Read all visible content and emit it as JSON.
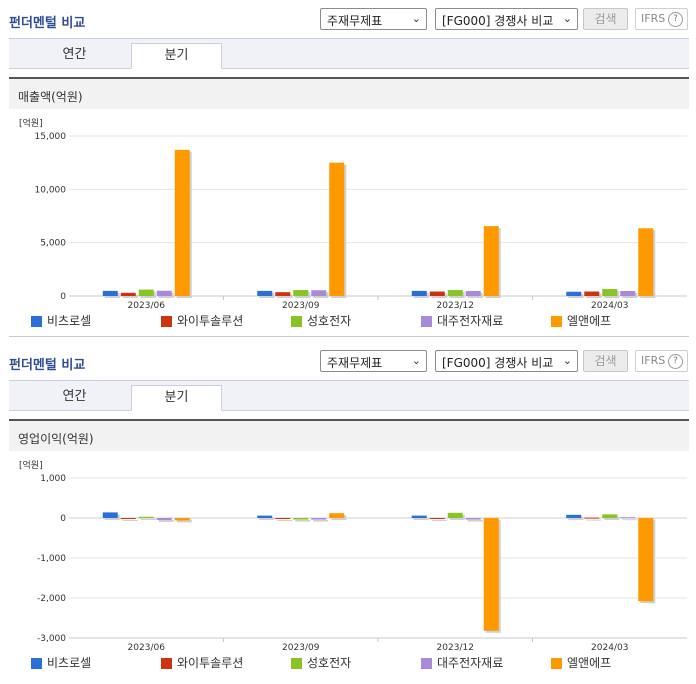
{
  "panels": [
    {
      "title": "펀더멘털 비교",
      "select_statement": "주재무제표",
      "select_compare": "[FG000] 경쟁사 비교",
      "search_label": "검색",
      "ifrs_label": "IFRS",
      "help_glyph": "?",
      "tabs": [
        {
          "label": "연간"
        },
        {
          "label": "분기"
        }
      ],
      "active_tab": "분기",
      "section_title": "매출액(억원)"
    },
    {
      "title": "펀더멘털 비교",
      "select_statement": "주재무제표",
      "select_compare": "[FG000] 경쟁사 비교",
      "search_label": "검색",
      "ifrs_label": "IFRS",
      "help_glyph": "?",
      "tabs": [
        {
          "label": "연간"
        },
        {
          "label": "분기"
        }
      ],
      "active_tab": "분기",
      "section_title": "영업이익(억원)"
    }
  ],
  "icons": {
    "dropdown": "chevron-down-icon",
    "help": "question-circle-icon"
  },
  "legend": [
    {
      "name": "비츠로셀",
      "color": "#2b6fd8"
    },
    {
      "name": "와이투솔루션",
      "color": "#cc3311"
    },
    {
      "name": "성호전자",
      "color": "#88c424"
    },
    {
      "name": "대주전자재료",
      "color": "#a98ad9"
    },
    {
      "name": "엘앤에프",
      "color": "#ff9900"
    }
  ],
  "chart_data": [
    {
      "type": "bar",
      "title": "매출액(억원)",
      "unit_label": "[억원]",
      "categories": [
        "2023/06",
        "2023/09",
        "2023/12",
        "2024/03"
      ],
      "ylim": [
        0,
        15000
      ],
      "yticks": [
        0,
        5000,
        10000,
        15000
      ],
      "ytick_labels": [
        "0",
        "5,000",
        "10,000",
        "15,000"
      ],
      "grid": true,
      "legend_position": "bottom",
      "series": [
        {
          "name": "비츠로셀",
          "values": [
            480,
            480,
            480,
            400
          ]
        },
        {
          "name": "와이투솔루션",
          "values": [
            300,
            360,
            420,
            420
          ]
        },
        {
          "name": "성호전자",
          "values": [
            600,
            560,
            560,
            650
          ]
        },
        {
          "name": "대주전자재료",
          "values": [
            490,
            540,
            470,
            470
          ]
        },
        {
          "name": "엘앤에프",
          "values": [
            13700,
            12500,
            6550,
            6350
          ]
        }
      ]
    },
    {
      "type": "bar",
      "title": "영업이익(억원)",
      "unit_label": "[억원]",
      "categories": [
        "2023/06",
        "2023/09",
        "2023/12",
        "2024/03"
      ],
      "ylim": [
        -3000,
        1000
      ],
      "yticks": [
        -3000,
        -2000,
        -1000,
        0,
        1000
      ],
      "ytick_labels": [
        "-3,000",
        "-2,000",
        "-1,000",
        "0",
        "1,000"
      ],
      "grid": true,
      "legend_position": "bottom",
      "series": [
        {
          "name": "비츠로셀",
          "values": [
            140,
            60,
            60,
            80
          ]
        },
        {
          "name": "와이투솔루션",
          "values": [
            -10,
            -10,
            -20,
            10
          ]
        },
        {
          "name": "성호전자",
          "values": [
            30,
            -40,
            130,
            90
          ]
        },
        {
          "name": "대주전자재료",
          "values": [
            -50,
            -40,
            -40,
            20
          ]
        },
        {
          "name": "엘앤에프",
          "values": [
            -60,
            120,
            -2820,
            -2080
          ]
        }
      ]
    }
  ]
}
